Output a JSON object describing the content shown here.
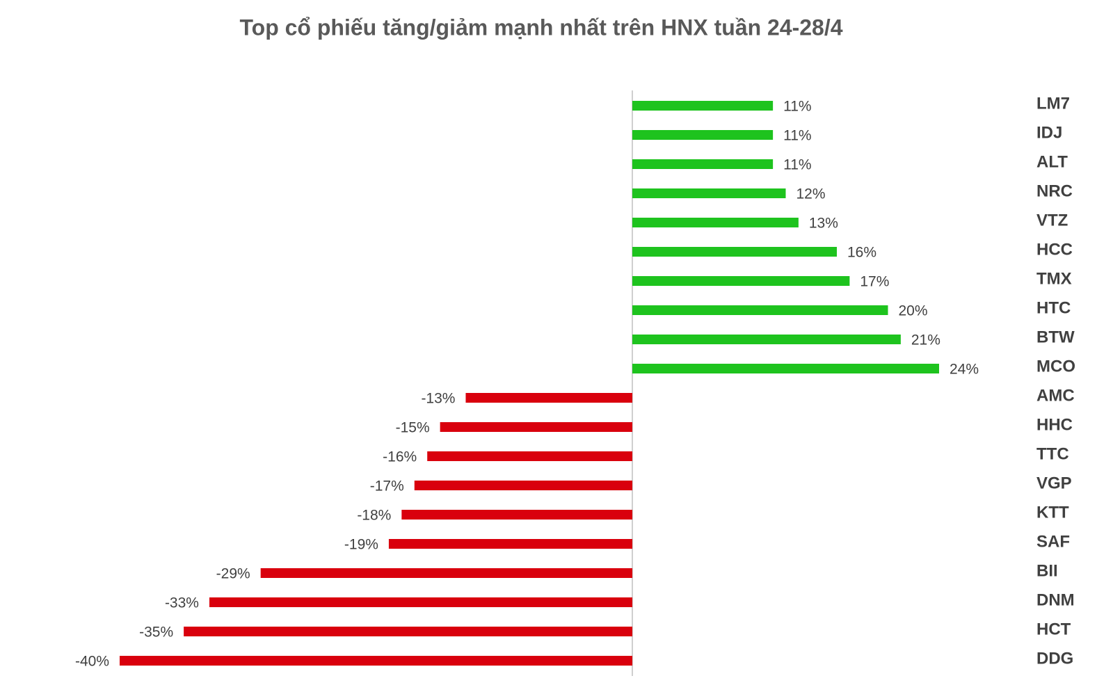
{
  "chart_data": {
    "type": "bar",
    "orientation": "horizontal",
    "title": "Top cổ phiếu tăng/giảm mạnh nhất trên HNX tuần 24-28/4",
    "categories": [
      "LM7",
      "IDJ",
      "ALT",
      "NRC",
      "VTZ",
      "HCC",
      "TMX",
      "HTC",
      "BTW",
      "MCO",
      "AMC",
      "HHC",
      "TTC",
      "VGP",
      "KTT",
      "SAF",
      "BII",
      "DNM",
      "HCT",
      "DDG"
    ],
    "values": [
      11,
      11,
      11,
      12,
      13,
      16,
      17,
      20,
      21,
      24,
      -13,
      -15,
      -16,
      -17,
      -18,
      -19,
      -29,
      -33,
      -35,
      -40
    ],
    "value_labels": [
      "11%",
      "11%",
      "11%",
      "12%",
      "13%",
      "16%",
      "17%",
      "20%",
      "21%",
      "24%",
      "-13%",
      "-15%",
      "-16%",
      "-17%",
      "-18%",
      "-19%",
      "-29%",
      "-33%",
      "-35%",
      "-40%"
    ],
    "positive_color": "#1ec31e",
    "negative_color": "#d9000d"
  }
}
